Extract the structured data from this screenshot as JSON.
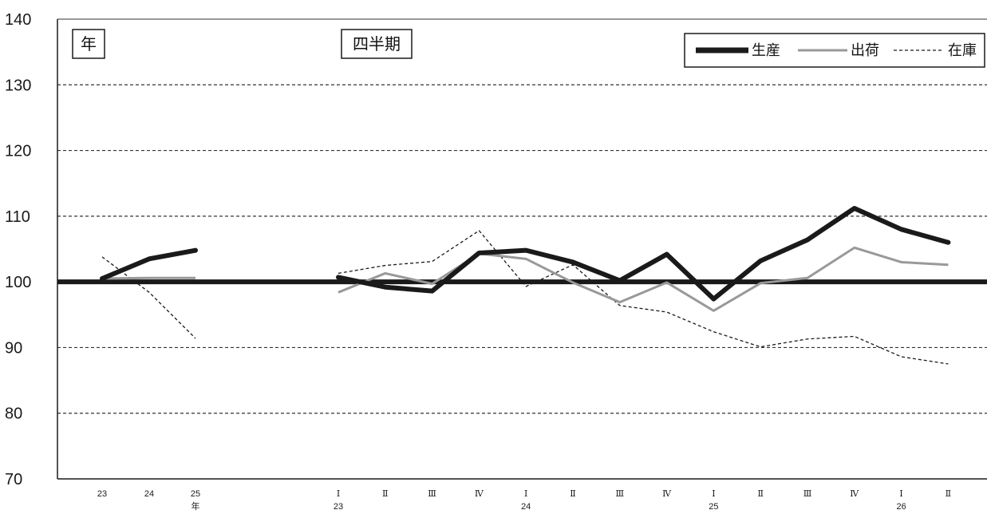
{
  "chart_data": {
    "type": "line",
    "ylim": [
      70,
      140
    ],
    "yticks": [
      70,
      80,
      90,
      100,
      110,
      120,
      130,
      140
    ],
    "grid": "horizontal-dashed",
    "legend_position": "top-right",
    "baseline": 100,
    "panel_labels": {
      "annual": "年",
      "quarterly": "四半期"
    },
    "annual": {
      "categories": [
        "23",
        "24",
        "25"
      ],
      "axis_suffix": "年",
      "series": [
        {
          "key": "production",
          "values": [
            100.5,
            103.5,
            104.8
          ]
        },
        {
          "key": "shipments",
          "values": [
            100.5,
            100.6,
            100.6
          ]
        },
        {
          "key": "inventory",
          "values": [
            103.8,
            98.4,
            91.4
          ]
        }
      ]
    },
    "quarterly": {
      "categories": [
        "Ⅰ",
        "Ⅱ",
        "Ⅲ",
        "Ⅳ",
        "Ⅰ",
        "Ⅱ",
        "Ⅲ",
        "Ⅳ",
        "Ⅰ",
        "Ⅱ",
        "Ⅲ",
        "Ⅳ",
        "Ⅰ",
        "Ⅱ"
      ],
      "year_labels": [
        "23",
        "",
        "",
        "",
        "24",
        "",
        "",
        "",
        "25",
        "",
        "",
        "",
        "26",
        ""
      ],
      "series": [
        {
          "key": "production",
          "values": [
            100.7,
            99.2,
            98.6,
            104.4,
            104.8,
            103.0,
            100.2,
            104.2,
            97.4,
            103.2,
            106.4,
            111.2,
            108.0,
            106.0
          ]
        },
        {
          "key": "shipments",
          "values": [
            98.4,
            101.3,
            99.7,
            104.3,
            103.5,
            99.9,
            96.9,
            99.9,
            95.6,
            99.8,
            100.6,
            105.2,
            103.0,
            102.6
          ]
        },
        {
          "key": "inventory",
          "values": [
            101.3,
            102.5,
            103.1,
            107.8,
            99.3,
            102.6,
            96.4,
            95.4,
            92.4,
            90.1,
            91.3,
            91.7,
            88.6,
            87.5
          ]
        }
      ]
    },
    "legend": [
      {
        "key": "production",
        "label": "生産",
        "style": "thick"
      },
      {
        "key": "shipments",
        "label": "出荷",
        "style": "gray"
      },
      {
        "key": "inventory",
        "label": "在庫",
        "style": "dashed"
      }
    ],
    "styles": {
      "production": {
        "color": "#1a1a1a"
      },
      "shipments": {
        "color": "#999999"
      },
      "inventory": {
        "color": "#1a1a1a"
      },
      "baseline": {
        "color": "#1a1a1a"
      },
      "grid": {
        "color": "#333333"
      }
    }
  }
}
